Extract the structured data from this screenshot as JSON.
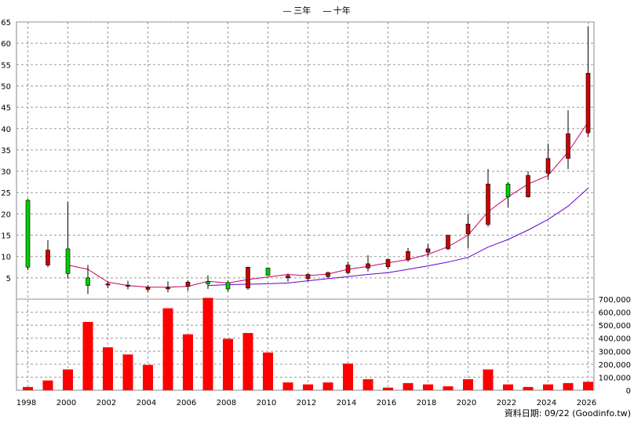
{
  "legend": [
    {
      "label": "三年",
      "color": "#cc0066"
    },
    {
      "label": "十年",
      "color": "#6600cc"
    }
  ],
  "source_note": "資料日期: 09/22 (Goodinfo.tw)",
  "chart_data": {
    "type": "candlestick_with_volume",
    "x_ticks": [
      "1998",
      "2000",
      "2002",
      "2004",
      "2006",
      "2008",
      "2010",
      "2012",
      "2014",
      "2016",
      "2018",
      "2020",
      "2022",
      "2024",
      "2026"
    ],
    "price_axis": {
      "ylim": [
        0,
        65
      ],
      "ticks": [
        5,
        10,
        15,
        20,
        25,
        30,
        35,
        40,
        45,
        50,
        55,
        60,
        65
      ]
    },
    "volume_axis": {
      "ylim": [
        0,
        700000
      ],
      "ticks": [
        "0",
        "100,000",
        "200,000",
        "300,000",
        "400,000",
        "500,000",
        "600,000",
        "700,000"
      ],
      "tick_values": [
        0,
        100000,
        200000,
        300000,
        400000,
        500000,
        600000,
        700000
      ]
    },
    "candles": [
      {
        "year": 1998,
        "open": 7.5,
        "close": 23.2,
        "high": 23.5,
        "low": 6.8
      },
      {
        "year": 1999,
        "open": 11.5,
        "close": 8.0,
        "high": 13.8,
        "low": 7.5
      },
      {
        "year": 2000,
        "open": 6.0,
        "close": 11.8,
        "high": 22.8,
        "low": 4.8
      },
      {
        "year": 2001,
        "open": 3.2,
        "close": 5.0,
        "high": 8.0,
        "low": 1.2
      },
      {
        "year": 2002,
        "open": 3.6,
        "close": 3.3,
        "high": 4.2,
        "low": 2.6
      },
      {
        "year": 2003,
        "open": 3.3,
        "close": 3.0,
        "high": 4.3,
        "low": 2.3
      },
      {
        "year": 2004,
        "open": 2.8,
        "close": 2.3,
        "high": 3.3,
        "low": 1.6
      },
      {
        "year": 2005,
        "open": 2.8,
        "close": 2.4,
        "high": 4.2,
        "low": 1.6
      },
      {
        "year": 2006,
        "open": 4.0,
        "close": 3.0,
        "high": 4.4,
        "low": 2.0
      },
      {
        "year": 2007,
        "open": 3.6,
        "close": 4.1,
        "high": 5.6,
        "low": 2.4
      },
      {
        "year": 2008,
        "open": 2.4,
        "close": 3.9,
        "high": 4.4,
        "low": 1.8
      },
      {
        "year": 2009,
        "open": 7.5,
        "close": 2.6,
        "high": 7.6,
        "low": 2.2
      },
      {
        "year": 2010,
        "open": 5.6,
        "close": 7.3,
        "high": 7.3,
        "low": 5.5
      },
      {
        "year": 2011,
        "open": 5.5,
        "close": 5.0,
        "high": 6.0,
        "low": 4.1
      },
      {
        "year": 2012,
        "open": 5.8,
        "close": 4.8,
        "high": 6.0,
        "low": 4.2
      },
      {
        "year": 2013,
        "open": 6.2,
        "close": 5.3,
        "high": 6.5,
        "low": 5.0
      },
      {
        "year": 2014,
        "open": 8.0,
        "close": 6.2,
        "high": 8.8,
        "low": 5.8
      },
      {
        "year": 2015,
        "open": 8.3,
        "close": 7.3,
        "high": 10.3,
        "low": 6.5
      },
      {
        "year": 2016,
        "open": 9.3,
        "close": 7.6,
        "high": 9.5,
        "low": 7.0
      },
      {
        "year": 2017,
        "open": 11.2,
        "close": 9.2,
        "high": 12.0,
        "low": 8.8
      },
      {
        "year": 2018,
        "open": 11.8,
        "close": 11.0,
        "high": 13.0,
        "low": 10.0
      },
      {
        "year": 2019,
        "open": 15.0,
        "close": 11.8,
        "high": 15.0,
        "low": 11.5
      },
      {
        "year": 2020,
        "open": 17.6,
        "close": 15.3,
        "high": 20.0,
        "low": 12.0
      },
      {
        "year": 2021,
        "open": 27.0,
        "close": 17.5,
        "high": 30.5,
        "low": 17.0
      },
      {
        "year": 2022,
        "open": 24.0,
        "close": 27.0,
        "high": 27.5,
        "low": 21.5
      },
      {
        "year": 2023,
        "open": 29.0,
        "close": 24.0,
        "high": 30.0,
        "low": 23.8
      },
      {
        "year": 2024,
        "open": 33.0,
        "close": 29.5,
        "high": 36.5,
        "low": 28.0
      },
      {
        "year": 2025,
        "open": 38.8,
        "close": 33.0,
        "high": 44.3,
        "low": 30.5
      },
      {
        "year": 2026,
        "open": 53.0,
        "close": 39.0,
        "high": 64.0,
        "low": 38.0
      }
    ],
    "series": [
      {
        "name": "三年",
        "color": "#cc0066",
        "points": [
          [
            2000,
            8.0
          ],
          [
            2001,
            7.0
          ],
          [
            2002,
            4.0
          ],
          [
            2003,
            3.2
          ],
          [
            2004,
            2.8
          ],
          [
            2005,
            2.8
          ],
          [
            2006,
            3.0
          ],
          [
            2007,
            4.2
          ],
          [
            2008,
            3.8
          ],
          [
            2009,
            4.6
          ],
          [
            2010,
            5.2
          ],
          [
            2011,
            5.8
          ],
          [
            2012,
            5.5
          ],
          [
            2013,
            5.9
          ],
          [
            2014,
            7.0
          ],
          [
            2015,
            7.7
          ],
          [
            2016,
            8.5
          ],
          [
            2017,
            9.3
          ],
          [
            2018,
            10.5
          ],
          [
            2019,
            12.3
          ],
          [
            2020,
            15.0
          ],
          [
            2021,
            20.5
          ],
          [
            2022,
            24.0
          ],
          [
            2023,
            27.0
          ],
          [
            2024,
            29.0
          ],
          [
            2025,
            34.5
          ],
          [
            2026,
            41.5
          ]
        ]
      },
      {
        "name": "十年",
        "color": "#6600cc",
        "points": [
          [
            2007,
            3.2
          ],
          [
            2008,
            3.4
          ],
          [
            2009,
            3.5
          ],
          [
            2010,
            3.6
          ],
          [
            2011,
            3.8
          ],
          [
            2012,
            4.3
          ],
          [
            2013,
            4.8
          ],
          [
            2014,
            5.3
          ],
          [
            2015,
            5.8
          ],
          [
            2016,
            6.2
          ],
          [
            2017,
            7.0
          ],
          [
            2018,
            7.8
          ],
          [
            2019,
            8.7
          ],
          [
            2020,
            9.8
          ],
          [
            2021,
            12.2
          ],
          [
            2022,
            14.0
          ],
          [
            2023,
            16.2
          ],
          [
            2024,
            18.7
          ],
          [
            2025,
            21.8
          ],
          [
            2026,
            26.0
          ]
        ]
      }
    ],
    "volumes": [
      {
        "year": 1998,
        "value": 25000
      },
      {
        "year": 1999,
        "value": 75000
      },
      {
        "year": 2000,
        "value": 160000
      },
      {
        "year": 2001,
        "value": 525000
      },
      {
        "year": 2002,
        "value": 330000
      },
      {
        "year": 2003,
        "value": 275000
      },
      {
        "year": 2004,
        "value": 195000
      },
      {
        "year": 2005,
        "value": 630000
      },
      {
        "year": 2006,
        "value": 430000
      },
      {
        "year": 2007,
        "value": 710000
      },
      {
        "year": 2008,
        "value": 395000
      },
      {
        "year": 2009,
        "value": 440000
      },
      {
        "year": 2010,
        "value": 290000
      },
      {
        "year": 2011,
        "value": 60000
      },
      {
        "year": 2012,
        "value": 45000
      },
      {
        "year": 2013,
        "value": 60000
      },
      {
        "year": 2014,
        "value": 205000
      },
      {
        "year": 2015,
        "value": 85000
      },
      {
        "year": 2016,
        "value": 20000
      },
      {
        "year": 2017,
        "value": 55000
      },
      {
        "year": 2018,
        "value": 45000
      },
      {
        "year": 2019,
        "value": 30000
      },
      {
        "year": 2020,
        "value": 85000
      },
      {
        "year": 2021,
        "value": 160000
      },
      {
        "year": 2022,
        "value": 45000
      },
      {
        "year": 2023,
        "value": 25000
      },
      {
        "year": 2024,
        "value": 45000
      },
      {
        "year": 2025,
        "value": 55000
      },
      {
        "year": 2026,
        "value": 65000
      }
    ],
    "candle_colors": {
      "up": "#00cc00",
      "down": "#cc0000"
    },
    "volume_color": "#ff0000",
    "grid": true
  }
}
